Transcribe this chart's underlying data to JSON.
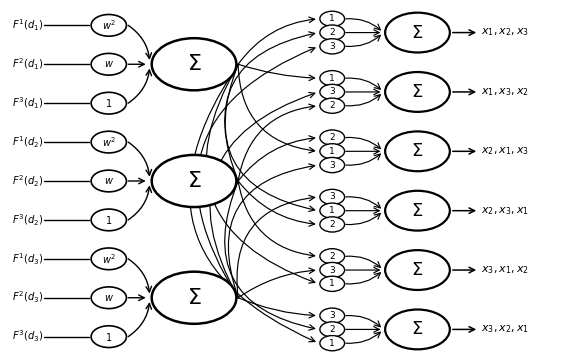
{
  "fig_width": 5.88,
  "fig_height": 3.62,
  "bg_color": "#ffffff",
  "input_labels": [
    [
      "$F^1(d_1)$",
      "$F^2(d_1)$",
      "$F^3(d_1)$"
    ],
    [
      "$F^1(d_2)$",
      "$F^2(d_2)$",
      "$F^3(d_2)$"
    ],
    [
      "$F^1(d_3)$",
      "$F^2(d_3)$",
      "$F^3(d_3)$"
    ]
  ],
  "weight_labels": [
    "$w^2$",
    "$w$",
    "$1$"
  ],
  "output_labels": [
    "$x_1, x_2, x_3$",
    "$x_1, x_3, x_2$",
    "$x_2, x_1, x_3$",
    "$x_2, x_3, x_1$",
    "$x_3, x_1, x_2$",
    "$x_3, x_2, x_1$"
  ],
  "perm_numbers": [
    [
      "1",
      "2",
      "3"
    ],
    [
      "1",
      "3",
      "2"
    ],
    [
      "2",
      "1",
      "3"
    ],
    [
      "3",
      "1",
      "2"
    ],
    [
      "2",
      "3",
      "1"
    ],
    [
      "3",
      "2",
      "1"
    ]
  ]
}
